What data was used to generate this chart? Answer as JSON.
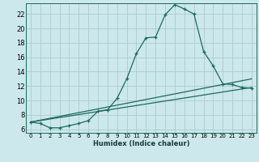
{
  "xlabel": "Humidex (Indice chaleur)",
  "bg_color": "#cce8ec",
  "grid_color": "#aaccd0",
  "line_color": "#1a6b5a",
  "xlim": [
    -0.5,
    23.5
  ],
  "ylim": [
    5.5,
    23.5
  ],
  "xticks": [
    0,
    1,
    2,
    3,
    4,
    5,
    6,
    7,
    8,
    9,
    10,
    11,
    12,
    13,
    14,
    15,
    16,
    17,
    18,
    19,
    20,
    21,
    22,
    23
  ],
  "yticks": [
    6,
    8,
    10,
    12,
    14,
    16,
    18,
    20,
    22
  ],
  "curve1_x": [
    0,
    1,
    2,
    3,
    4,
    5,
    6,
    7,
    8,
    9,
    10,
    11,
    12,
    13,
    14,
    15,
    16,
    17,
    18,
    19,
    20,
    21,
    22,
    23
  ],
  "curve1_y": [
    7.0,
    6.8,
    6.2,
    6.2,
    6.5,
    6.8,
    7.2,
    8.5,
    8.7,
    10.3,
    13.0,
    16.5,
    18.7,
    18.8,
    21.9,
    23.3,
    22.7,
    22.0,
    16.8,
    14.8,
    12.3,
    12.2,
    11.8,
    11.7
  ],
  "curve2_x": [
    0,
    23
  ],
  "curve2_y": [
    7.0,
    13.0
  ],
  "curve3_x": [
    0,
    23
  ],
  "curve3_y": [
    7.0,
    11.8
  ]
}
